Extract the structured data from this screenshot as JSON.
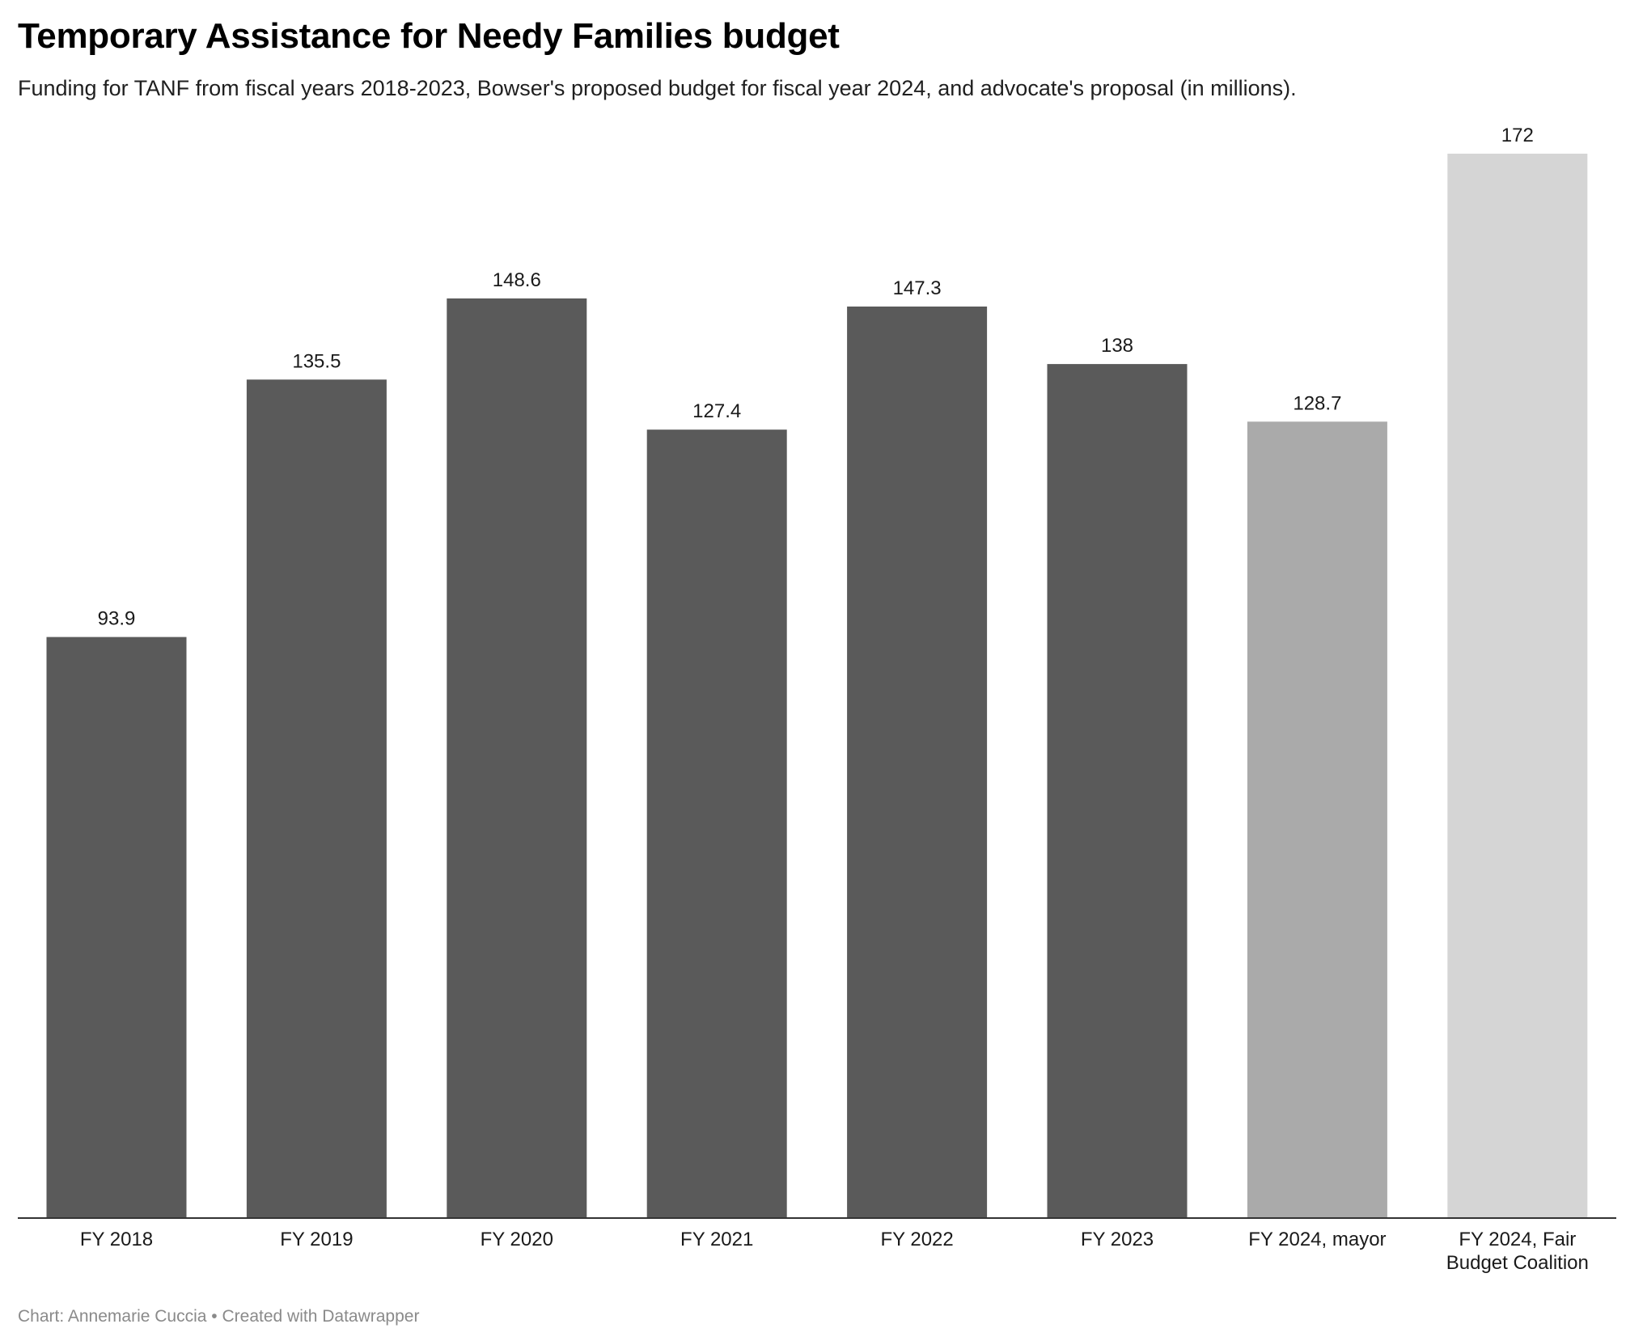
{
  "title": "Temporary Assistance for Needy Families budget",
  "subtitle": "Funding for TANF from fiscal years 2018-2023, Bowser's proposed budget for fiscal year 2024, and advocate's proposal (in millions).",
  "footer": {
    "chart_credit": "Chart: Annemarie Cuccia",
    "separator": "•",
    "created_with": "Created with Datawrapper"
  },
  "colors": {
    "historical": "#5a5a5a",
    "mayor_proposal": "#aaaaaa",
    "coalition_proposal": "#d5d5d5",
    "axis": "#333333"
  },
  "chart_data": {
    "type": "bar",
    "title": "Temporary Assistance for Needy Families budget",
    "subtitle": "Funding for TANF from fiscal years 2018-2023, Bowser's proposed budget for fiscal year 2024, and advocate's proposal (in millions).",
    "xlabel": "",
    "ylabel": "",
    "ylim": [
      0,
      172
    ],
    "grid": false,
    "categories": [
      "FY 2018",
      "FY 2019",
      "FY 2020",
      "FY 2021",
      "FY 2022",
      "FY 2023",
      "FY 2024, mayor",
      "FY 2024, Fair Budget Coalition"
    ],
    "category_label_lines": [
      [
        "FY 2018"
      ],
      [
        "FY 2019"
      ],
      [
        "FY 2020"
      ],
      [
        "FY 2021"
      ],
      [
        "FY 2022"
      ],
      [
        "FY 2023"
      ],
      [
        "FY 2024, mayor"
      ],
      [
        "FY 2024, Fair",
        "Budget Coalition"
      ]
    ],
    "values": [
      93.9,
      135.5,
      148.6,
      127.4,
      147.3,
      138,
      128.7,
      172
    ],
    "value_labels": [
      "93.9",
      "135.5",
      "148.6",
      "127.4",
      "147.3",
      "138",
      "128.7",
      "172"
    ],
    "bar_colors": [
      "#5a5a5a",
      "#5a5a5a",
      "#5a5a5a",
      "#5a5a5a",
      "#5a5a5a",
      "#5a5a5a",
      "#aaaaaa",
      "#d5d5d5"
    ]
  }
}
